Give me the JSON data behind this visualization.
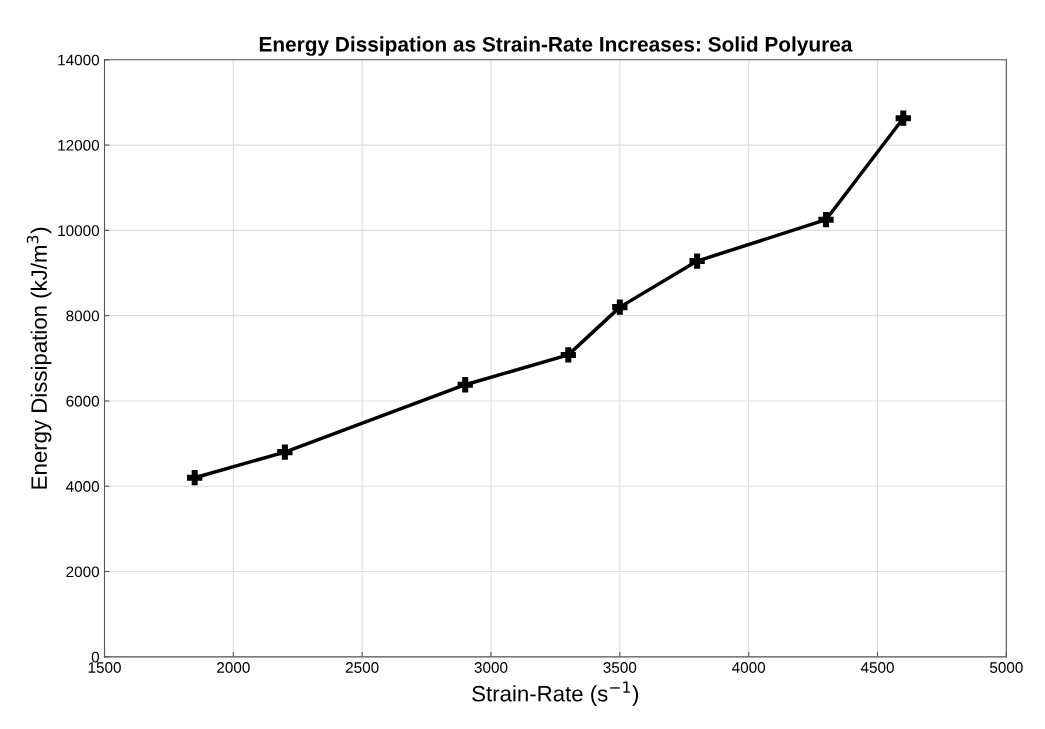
{
  "chart_data": {
    "type": "line",
    "title": "Energy Dissipation as Strain-Rate Increases: Solid Polyurea",
    "xlabel": "Strain-Rate (s$^{−1}$)",
    "ylabel": "Energy Dissipation (kJ/m$^{3}$)",
    "x": [
      1850,
      2200,
      2900,
      3300,
      3500,
      3800,
      4300,
      4600
    ],
    "series": [
      {
        "color": "#000000",
        "values": [
          4200,
          4800,
          6380,
          7080,
          8200,
          9280,
          10250,
          12630
        ]
      }
    ],
    "xlim": [
      1500,
      5000
    ],
    "xticks": [
      1500,
      2000,
      2500,
      3000,
      3500,
      4000,
      4500,
      5000
    ],
    "ylim": [
      0,
      14000
    ],
    "yticks": [
      0,
      2000,
      4000,
      6000,
      8000,
      10000,
      12000,
      14000
    ],
    "grid": true,
    "marker": "cross",
    "line_style": "solid"
  }
}
